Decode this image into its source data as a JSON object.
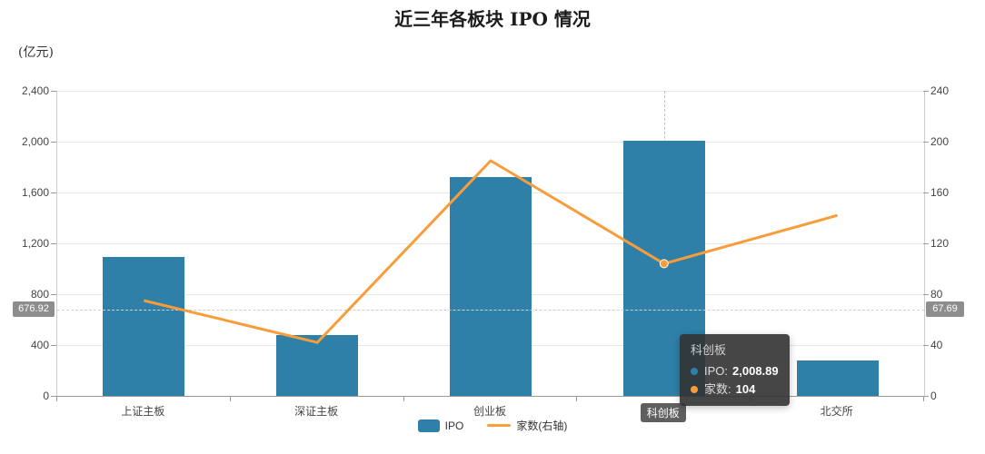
{
  "chart_data": {
    "type": "bar",
    "title": "近三年各板块 IPO 情况",
    "unit_label": "(亿元)",
    "categories": [
      "上证主板",
      "深证主板",
      "创业板",
      "科创板",
      "北交所"
    ],
    "series": [
      {
        "name": "IPO",
        "type": "bar",
        "axis": "left",
        "values": [
          1090,
          480,
          1720,
          2008.89,
          280
        ]
      },
      {
        "name": "家数(右轴)",
        "type": "line",
        "axis": "right",
        "values": [
          75,
          42,
          185,
          104,
          142
        ]
      }
    ],
    "left_axis": {
      "min": 0,
      "max": 2400,
      "tick_step": 400,
      "tick_labels": [
        "0",
        "400",
        "800",
        "1,200",
        "1,600",
        "2,000",
        "2,400"
      ]
    },
    "right_axis": {
      "min": 0,
      "max": 240,
      "tick_step": 40,
      "tick_labels": [
        "0",
        "40",
        "80",
        "120",
        "160",
        "200",
        "240"
      ]
    },
    "grid": true,
    "legend_position": "bottom"
  },
  "legend": [
    {
      "name": "IPO",
      "type": "bar",
      "color": "#2E80A8"
    },
    {
      "name": "家数(右轴)",
      "type": "line",
      "color": "#F99C3A"
    }
  ],
  "tooltip": {
    "title": "科创板",
    "rows": [
      {
        "marker_color": "#2E80A8",
        "label": "IPO:",
        "value": "2,008.89"
      },
      {
        "marker_color": "#F99C3A",
        "label": "家数:",
        "value": "104"
      }
    ]
  },
  "crosshair": {
    "left_label": "676.92",
    "right_label": "67.69",
    "left_value": 676.92,
    "category_index": 3,
    "highlighted_category": "科创板"
  },
  "colors": {
    "bar": "#2E80A8",
    "line": "#F99C3A",
    "grid_line": "#E8E8E8",
    "axis_line": "#999999",
    "crosshair_badge_bg": "#8D8D8D",
    "category_badge_bg": "#5F5F5F",
    "tooltip_bg": "rgba(50,50,50,0.9)"
  }
}
